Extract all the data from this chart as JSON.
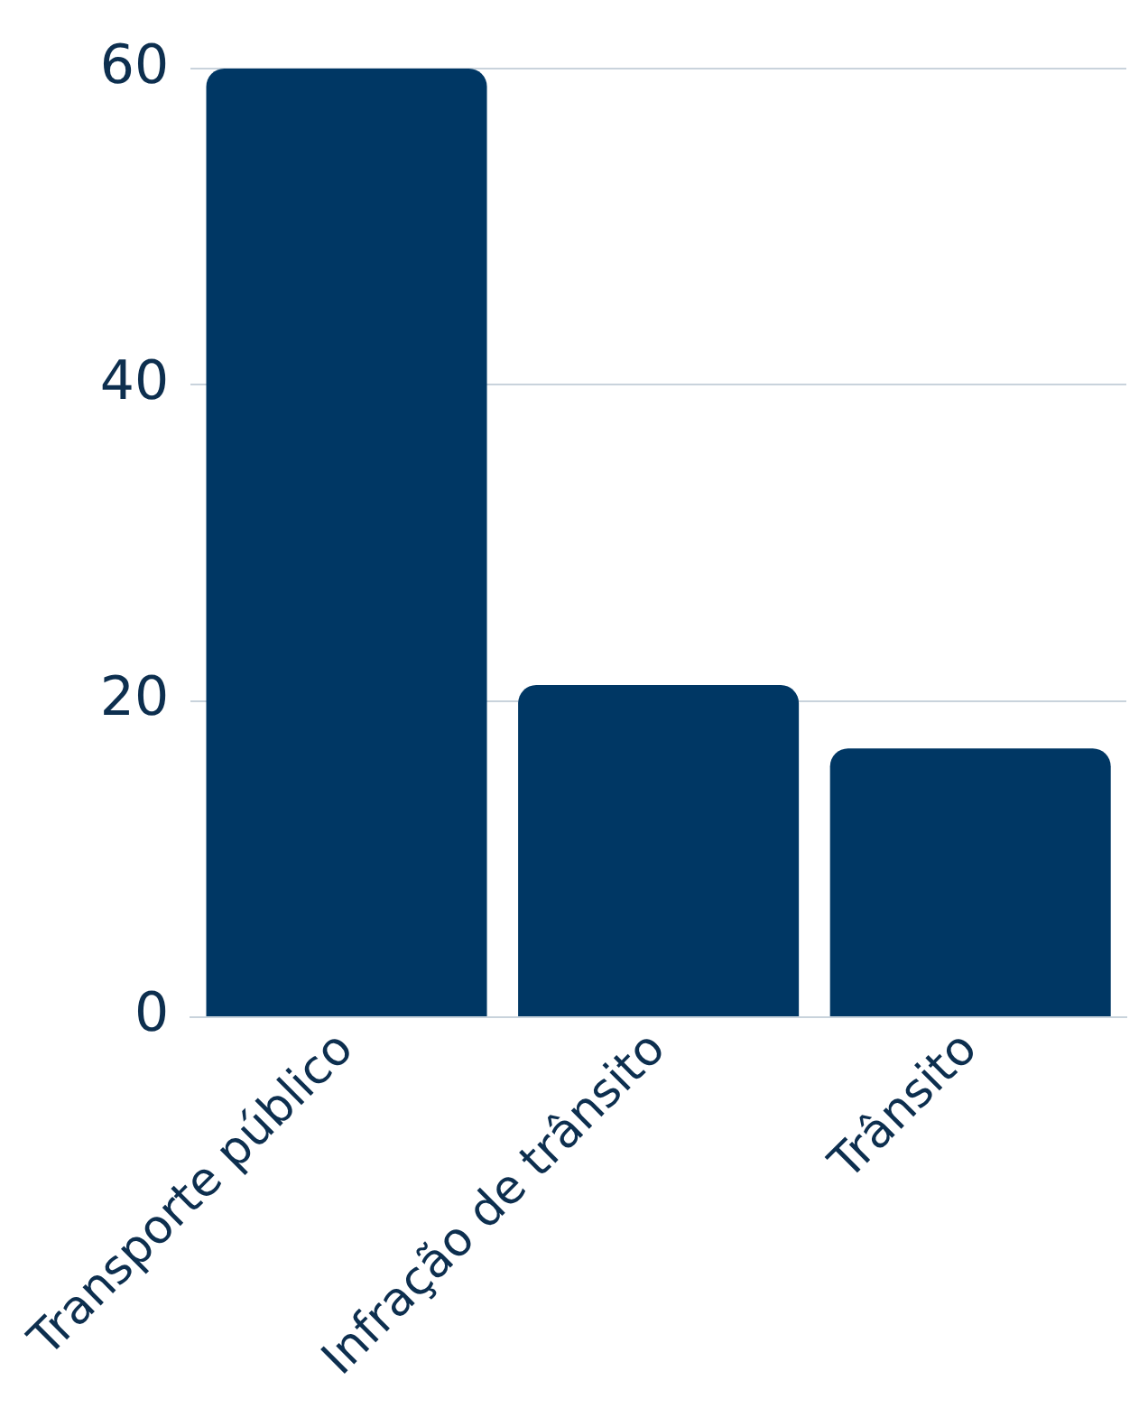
{
  "chart_data": {
    "type": "bar",
    "categories": [
      "Transporte público",
      "Infração de trânsito",
      "Trânsito"
    ],
    "values": [
      60,
      21,
      17
    ],
    "color": "#003764",
    "ylim": [
      0,
      60
    ],
    "yticks": [
      0,
      20,
      40,
      60
    ],
    "grid": "y",
    "legend": false
  }
}
